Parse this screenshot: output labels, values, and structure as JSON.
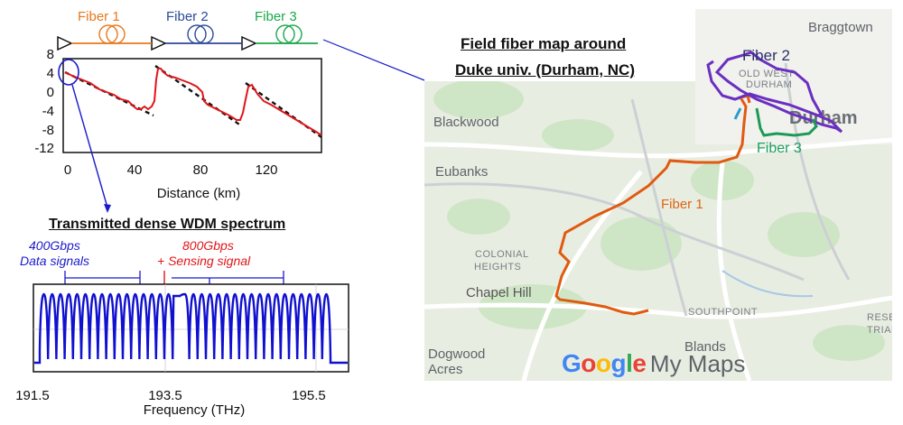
{
  "fibers": {
    "fiber1": "Fiber 1",
    "fiber2": "Fiber 2",
    "fiber3": "Fiber 3"
  },
  "colors": {
    "fiber1": "#e8781c",
    "fiber2": "#2b4a9a",
    "fiber3": "#1aa84a",
    "trace": "#e0161a",
    "spectrum": "#1010d0",
    "arrow_blue": "#1a1acc",
    "arrow_red": "#e0161a",
    "map_fiber1": "#e05a10",
    "map_fiber2": "#6a2fc0",
    "map_fiber3": "#1a9a55"
  },
  "trace_plot": {
    "y_ticks": [
      "8",
      "4",
      "0",
      "-4",
      "-8",
      "-12"
    ],
    "x_ticks": [
      "0",
      "40",
      "80",
      "120"
    ],
    "xlabel": "Distance (km)"
  },
  "spectrum": {
    "title": "Transmitted dense WDM spectrum",
    "data_label_line1": "400Gbps",
    "data_label_line2": "Data signals",
    "sensing_label_line1": "800Gbps",
    "sensing_label_line2": "+ Sensing signal",
    "x_ticks": [
      "191.5",
      "193.5",
      "195.5"
    ],
    "xlabel": "Frequency (THz)"
  },
  "map": {
    "title_line1": "Field fiber map around",
    "title_line2": "Duke univ. (Durham, NC)",
    "places": {
      "braggtown": "Braggtown",
      "blackwood": "Blackwood",
      "eubanks": "Eubanks",
      "colonial1": "COLONIAL",
      "colonial2": "HEIGHTS",
      "chapel_hill": "Chapel Hill",
      "southpoint": "SOUTHPOINT",
      "blands": "Blands",
      "dogwood1": "Dogwood",
      "dogwood2": "Acres",
      "old_west1": "OLD WEST",
      "old_west2": "DURHAM",
      "durham": "Durham",
      "resea": "RESE",
      "trian": "TRIAN"
    },
    "fiber1_label": "Fiber 1",
    "fiber2_label": "Fiber 2",
    "fiber3_label": "Fiber 3",
    "watermark_google": "Google",
    "watermark_mymaps": "My Maps"
  }
}
